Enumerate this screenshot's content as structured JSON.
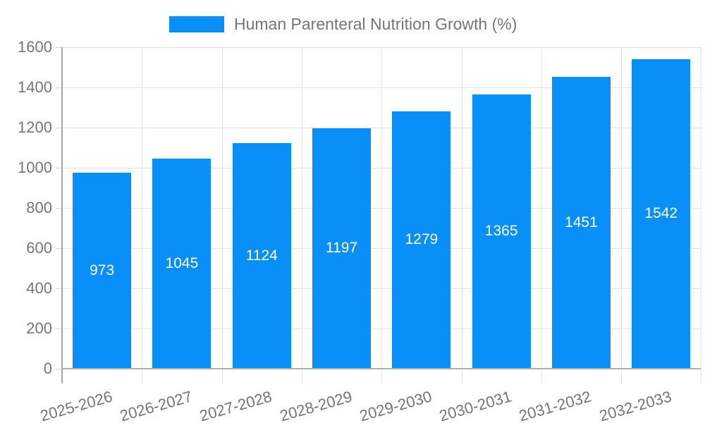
{
  "chart_data": {
    "type": "bar",
    "title": "Human Parenteral Nutrition Growth (%)",
    "categories": [
      "2025-2026",
      "2026-2027",
      "2027-2028",
      "2028-2029",
      "2029-2030",
      "2030-2031",
      "2031-2032",
      "2032-2033"
    ],
    "values": [
      973,
      1045,
      1124,
      1197,
      1279,
      1365,
      1451,
      1542
    ],
    "value_labels": [
      "973",
      "1045",
      "1124",
      "1197",
      "1279",
      "1365",
      "1451",
      "1542"
    ],
    "xlabel": "",
    "ylabel": "",
    "ylim": [
      0,
      1600
    ],
    "yticks": [
      "0",
      "200",
      "400",
      "600",
      "800",
      "1000",
      "1200",
      "1400",
      "1600"
    ],
    "grid": "on",
    "legend_position": "top",
    "bar_color": "#0990f8",
    "value_label_color": "#ffffff",
    "axis_text_color": "#757575",
    "grid_color": "#e3e3e3",
    "axis_line_color": "#b0b0b0"
  }
}
